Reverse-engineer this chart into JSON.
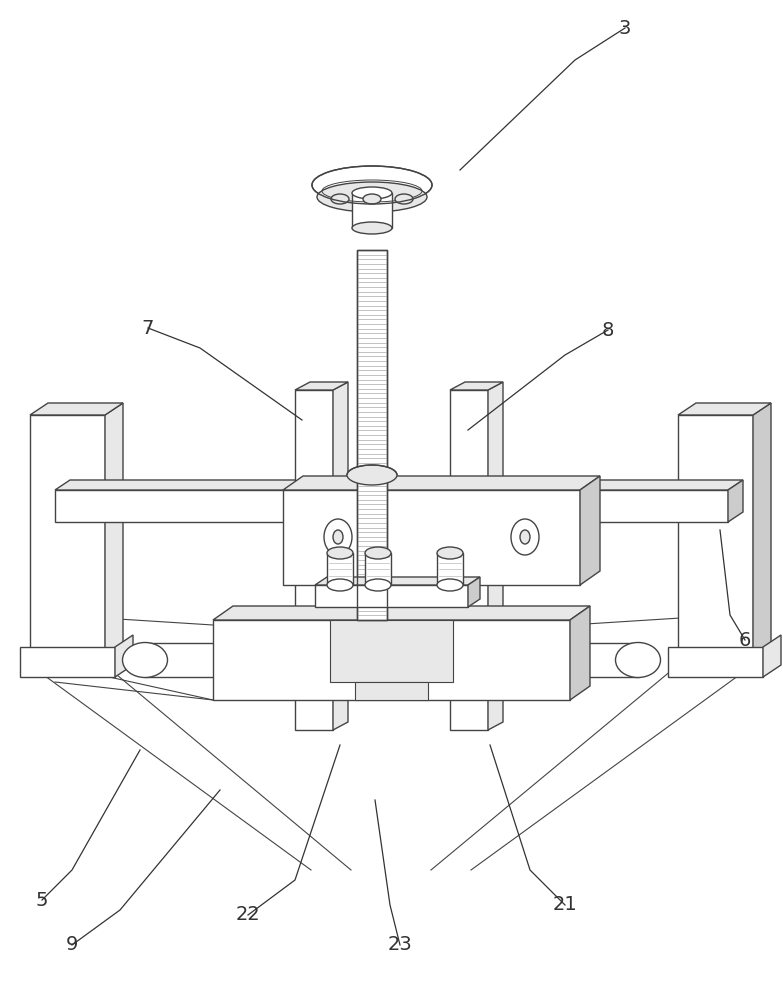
{
  "bg": "#ffffff",
  "lc": "#444444",
  "fl": "#e8e8e8",
  "fm": "#cccccc",
  "lw": 1.0,
  "lw_t": 0.7,
  "label_fs": 14
}
